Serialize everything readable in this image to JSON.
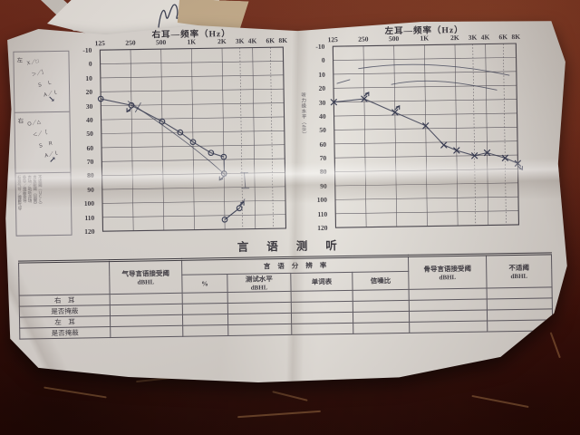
{
  "scene": {
    "colors": {
      "wood": "#5c1a10",
      "paper": "#e3e1dd",
      "print_ink": "#3b3a42",
      "pen_ink": "#323850"
    }
  },
  "sheet": {
    "right_chart": {
      "title": "右耳—频率（Hz）"
    },
    "left_chart": {
      "title": "左耳—频率（Hz）"
    },
    "freq_labels": [
      "125",
      "250",
      "500",
      "1K",
      "2K",
      "3K",
      "4K",
      "6K",
      "8K"
    ],
    "db_labels": [
      "-10",
      "0",
      "10",
      "20",
      "30",
      "40",
      "50",
      "60",
      "70",
      "80",
      "90",
      "100",
      "110",
      "120"
    ],
    "y_axis_note": "听力级水平（dB）",
    "legend_left": {
      "label": "左",
      "lines": [
        "Ｘ／□",
        "＞／］",
        "Ｓ　Ｌ",
        "Ａ／ｌ"
      ],
      "arrow": "↘"
    },
    "legend_right": {
      "label": "右",
      "lines": [
        "Ｏ／△",
        "＜／［",
        "Ｓ　Ｒ",
        "Ａ／ｌ"
      ],
      "arrow": "↗"
    },
    "legend_notes": [
      "标准气导／掩蔽气导",
      "骨导／掩蔽骨导",
      "声场／助听声场",
      "声反射阈（同侧）",
      "不适阈（ＵＣＬ）"
    ],
    "speech_table": {
      "title": "言语测听",
      "col_air": "气导言语接受阈",
      "group_discrimination": "言语分辨率",
      "sub_percent": "%",
      "sub_level": "测试水平",
      "sub_wordlist": "单词表",
      "sub_snr": "信噪比",
      "col_bone": "骨导言语接受阈",
      "col_ucl": "不适阈",
      "dbhl": "dBHL",
      "rows": [
        "右　耳",
        "是否掩蔽",
        "左　耳",
        "是否掩蔽"
      ]
    }
  },
  "chart_data": [
    {
      "type": "line",
      "title": "右耳—频率（Hz）",
      "xlabel": "频率 (Hz)",
      "ylabel": "听力级 (dB HL)",
      "x_ticks": [
        "125",
        "250",
        "500",
        "1K",
        "2K",
        "3K",
        "4K",
        "6K",
        "8K"
      ],
      "x_freqs": [
        125,
        250,
        500,
        1000,
        2000,
        3000,
        4000,
        6000,
        8000
      ],
      "ylim": [
        -10,
        120
      ],
      "grid": true,
      "series": [
        {
          "name": "air-conduction-O",
          "marker": "circle",
          "x": [
            125,
            250,
            500,
            750,
            1000,
            1500,
            2000
          ],
          "y": [
            25,
            30,
            42,
            50,
            57,
            65,
            68
          ]
        },
        {
          "name": "no-response-O",
          "marker": "circle",
          "x": [
            2000
          ],
          "y": [
            80
          ]
        },
        {
          "name": "extra-marks-O",
          "marker": "circle",
          "x": [
            2000,
            2800
          ],
          "y": [
            113,
            105
          ]
        }
      ],
      "arrows": [
        {
          "x": 250,
          "y": 30,
          "dir": "sw"
        },
        {
          "x": 2000,
          "y": 80,
          "dir": "sw"
        },
        {
          "x": 2800,
          "y": 105,
          "dir": "ne"
        }
      ]
    },
    {
      "type": "line",
      "title": "左耳—频率（Hz）",
      "xlabel": "频率 (Hz)",
      "ylabel": "听力级 (dB HL)",
      "x_ticks": [
        "125",
        "250",
        "500",
        "1K",
        "2K",
        "3K",
        "4K",
        "6K",
        "8K"
      ],
      "x_freqs": [
        125,
        250,
        500,
        1000,
        2000,
        3000,
        4000,
        6000,
        8000
      ],
      "ylim": [
        -10,
        120
      ],
      "grid": true,
      "series": [
        {
          "name": "air-conduction-X",
          "marker": "x",
          "x": [
            125,
            250,
            500,
            1000,
            1500,
            2000,
            3000,
            4000,
            6000,
            8000
          ],
          "y": [
            30,
            28,
            38,
            48,
            62,
            66,
            70,
            68,
            72,
            76
          ]
        }
      ],
      "arrows": [
        {
          "x": 250,
          "y": 28,
          "dir": "ne"
        },
        {
          "x": 500,
          "y": 38,
          "dir": "ne"
        },
        {
          "x": 8000,
          "y": 76,
          "dir": "se"
        }
      ]
    }
  ]
}
